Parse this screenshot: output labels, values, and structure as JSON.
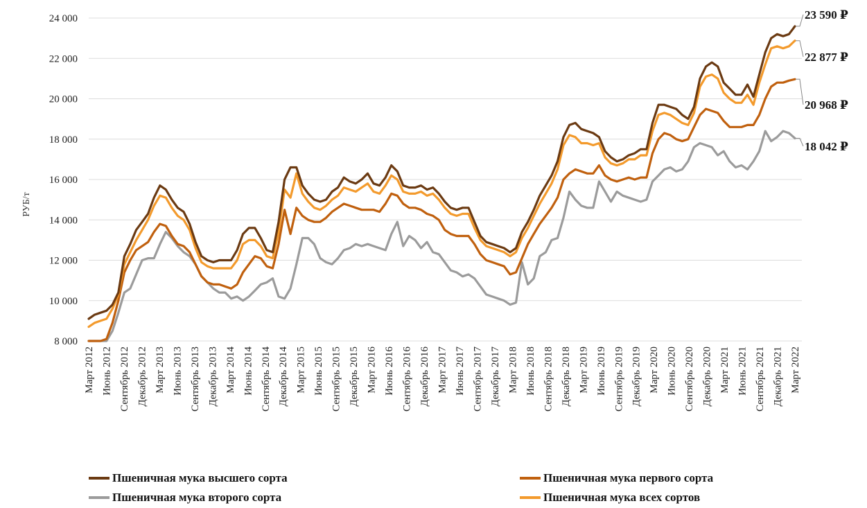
{
  "chart_data": {
    "type": "line",
    "title": "",
    "xlabel": "",
    "ylabel": "РУБ/т",
    "ylim": [
      8000,
      24000
    ],
    "yticks": [
      "8 000",
      "10 000",
      "12 000",
      "14 000",
      "16 000",
      "18 000",
      "20 000",
      "22 000",
      "24 000"
    ],
    "grid": "horizontal",
    "legend_position": "bottom",
    "x_ticks": [
      "Март 2012",
      "Июнь 2012",
      "Сентябрь 2012",
      "Декабрь 2012",
      "Март 2013",
      "Июнь 2013",
      "Сентябрь 2013",
      "Декабрь 2013",
      "Март 2014",
      "Июнь 2014",
      "Сентябрь 2014",
      "Декабрь 2014",
      "Март 2015",
      "Июнь 2015",
      "Сентябрь 2015",
      "Декабрь 2015",
      "Март 2016",
      "Июнь 2016",
      "Сентябрь 2016",
      "Декабрь 2016",
      "Март 2017",
      "Июнь 2017",
      "Сентябрь 2017",
      "Декабрь 2017",
      "Март 2018",
      "Июнь 2018",
      "Сентябрь 2018",
      "Декабрь 2018",
      "Март 2019",
      "Июнь 2019",
      "Сентябрь 2019",
      "Декабрь 2019",
      "Март 2020",
      "Июнь 2020",
      "Сентябрь 2020",
      "Декабрь 2020",
      "Март 2021",
      "Июнь 2021",
      "Сентябрь 2021",
      "Декабрь 2021",
      "Март 2022"
    ],
    "series": [
      {
        "name": "Пшеничная мука высшего сорта",
        "color": "#6b3a12",
        "end_label": "23 590 ₽",
        "values": [
          9100,
          9300,
          9400,
          9500,
          9800,
          10400,
          12200,
          12800,
          13500,
          13900,
          14300,
          15100,
          15700,
          15500,
          15000,
          14600,
          14400,
          13800,
          12900,
          12200,
          12000,
          11900,
          12000,
          12000,
          12000,
          12500,
          13300,
          13600,
          13600,
          13100,
          12500,
          12400,
          13900,
          16000,
          16600,
          16600,
          15700,
          15300,
          15000,
          14900,
          15000,
          15400,
          15600,
          16100,
          15900,
          15800,
          16000,
          16300,
          15800,
          15700,
          16100,
          16700,
          16400,
          15700,
          15600,
          15600,
          15700,
          15500,
          15600,
          15300,
          14900,
          14600,
          14500,
          14600,
          14600,
          13900,
          13200,
          12900,
          12800,
          12700,
          12600,
          12400,
          12600,
          13400,
          13900,
          14500,
          15200,
          15700,
          16200,
          16900,
          18100,
          18700,
          18800,
          18500,
          18400,
          18300,
          18100,
          17400,
          17100,
          16900,
          17000,
          17200,
          17300,
          17500,
          17500,
          18800,
          19700,
          19700,
          19600,
          19500,
          19200,
          19000,
          19600,
          21000,
          21600,
          21800,
          21600,
          20800,
          20500,
          20200,
          20200,
          20700,
          20100,
          21200,
          22300,
          23000,
          23200,
          23100,
          23200,
          23590
        ]
      },
      {
        "name": "Пшеничная мука первого сорта",
        "color": "#c0600e",
        "end_label": "20 968 ₽",
        "values": [
          8000,
          8000,
          8000,
          8100,
          8900,
          10000,
          11400,
          12000,
          12500,
          12700,
          12900,
          13400,
          13800,
          13700,
          13200,
          12800,
          12700,
          12400,
          11800,
          11200,
          10900,
          10800,
          10800,
          10700,
          10600,
          10800,
          11400,
          11800,
          12200,
          12100,
          11700,
          11600,
          12800,
          14500,
          13300,
          14600,
          14200,
          14000,
          13900,
          13900,
          14100,
          14400,
          14600,
          14800,
          14700,
          14600,
          14500,
          14500,
          14500,
          14400,
          14800,
          15300,
          15200,
          14800,
          14600,
          14600,
          14500,
          14300,
          14200,
          14000,
          13500,
          13300,
          13200,
          13200,
          13200,
          12800,
          12300,
          12000,
          11900,
          11800,
          11700,
          11300,
          11400,
          12100,
          12800,
          13300,
          13800,
          14200,
          14600,
          15100,
          16000,
          16300,
          16500,
          16400,
          16300,
          16300,
          16700,
          16200,
          16000,
          15900,
          16000,
          16100,
          16000,
          16100,
          16100,
          17300,
          18000,
          18300,
          18200,
          18000,
          17900,
          18000,
          18600,
          19200,
          19500,
          19400,
          19300,
          18900,
          18600,
          18600,
          18600,
          18700,
          18700,
          19200,
          20000,
          20600,
          20800,
          20800,
          20900,
          20968
        ]
      },
      {
        "name": "Пшеничная мука второго сорта",
        "color": "#9b9b9b",
        "end_label": "18 042 ₽",
        "values": [
          8000,
          8000,
          8000,
          8000,
          8500,
          9400,
          10400,
          10600,
          11300,
          12000,
          12100,
          12100,
          12800,
          13400,
          13100,
          12700,
          12400,
          12200,
          11800,
          11200,
          10900,
          10600,
          10400,
          10400,
          10100,
          10200,
          10000,
          10200,
          10500,
          10800,
          10900,
          11100,
          10200,
          10100,
          10600,
          11800,
          13100,
          13100,
          12800,
          12100,
          11900,
          11800,
          12100,
          12500,
          12600,
          12800,
          12700,
          12800,
          12700,
          12600,
          12500,
          13300,
          13900,
          12700,
          13200,
          13000,
          12600,
          12900,
          12400,
          12300,
          11900,
          11500,
          11400,
          11200,
          11300,
          11100,
          10700,
          10300,
          10200,
          10100,
          10000,
          9800,
          9900,
          11900,
          10800,
          11100,
          12200,
          12400,
          13000,
          13100,
          14100,
          15400,
          15000,
          14700,
          14600,
          14600,
          15900,
          15400,
          14900,
          15400,
          15200,
          15100,
          15000,
          14900,
          15000,
          15900,
          16200,
          16500,
          16600,
          16400,
          16500,
          16900,
          17600,
          17800,
          17700,
          17600,
          17200,
          17400,
          16900,
          16600,
          16700,
          16500,
          16900,
          17400,
          18400,
          17900,
          18100,
          18400,
          18300,
          18042
        ]
      },
      {
        "name": "Пшеничная мука всех сортов",
        "color": "#f39a2c",
        "end_label": "22 877 ₽",
        "values": [
          8700,
          8900,
          9000,
          9100,
          9600,
          10300,
          11800,
          12400,
          13000,
          13500,
          14000,
          14700,
          15200,
          15100,
          14600,
          14200,
          14000,
          13500,
          12600,
          11900,
          11700,
          11600,
          11600,
          11600,
          11600,
          12000,
          12800,
          13000,
          13000,
          12700,
          12200,
          12100,
          13400,
          15500,
          15100,
          16300,
          15300,
          14900,
          14600,
          14500,
          14700,
          15000,
          15200,
          15600,
          15500,
          15400,
          15600,
          15800,
          15400,
          15300,
          15700,
          16200,
          16000,
          15400,
          15300,
          15300,
          15400,
          15200,
          15300,
          15000,
          14600,
          14300,
          14200,
          14300,
          14300,
          13600,
          13000,
          12700,
          12600,
          12500,
          12400,
          12200,
          12400,
          13100,
          13600,
          14200,
          14800,
          15300,
          15800,
          16500,
          17700,
          18200,
          18100,
          17800,
          17800,
          17700,
          17800,
          17100,
          16800,
          16700,
          16800,
          17000,
          17000,
          17200,
          17200,
          18400,
          19200,
          19300,
          19200,
          19000,
          18800,
          18700,
          19300,
          20600,
          21100,
          21200,
          21000,
          20300,
          20000,
          19800,
          19800,
          20200,
          19700,
          20800,
          21700,
          22500,
          22600,
          22500,
          22600,
          22877
        ]
      }
    ]
  }
}
